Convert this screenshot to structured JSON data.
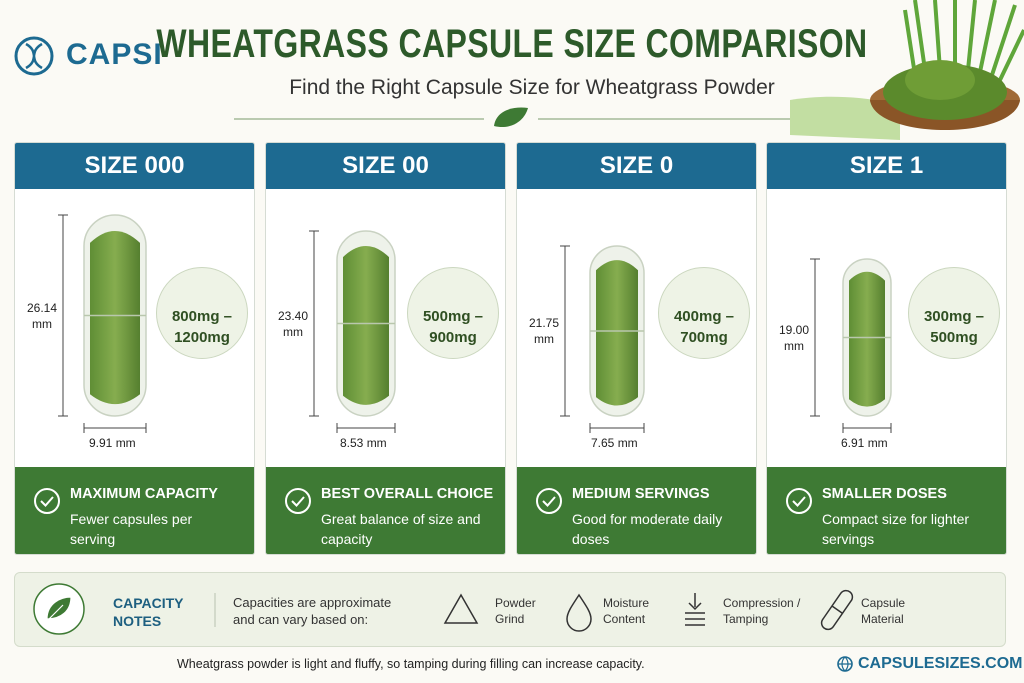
{
  "header": {
    "logo": "CAPSI",
    "title": "WHEATGRASS CAPSULE SIZE COMPARISON",
    "subtitle": "Find the Right Capsule Size for Wheatgrass Powder"
  },
  "cards": [
    {
      "size": "SIZE 000",
      "length": "26.14 mm",
      "width": "9.91 mm",
      "dose": "800mg – 1200mg",
      "heading": "MAXIMUM CAPACITY",
      "description": "Fewer capsules per serving"
    },
    {
      "size": "SIZE 00",
      "length": "23.40 mm",
      "width": "8.53 mm",
      "dose": "500mg – 900mg",
      "heading": "BEST OVERALL CHOICE",
      "description": "Great balance of size and capacity"
    },
    {
      "size": "SIZE 0",
      "length": "21.75 mm",
      "width": "7.65 mm",
      "dose": "400mg – 700mg",
      "heading": "MEDIUM SERVINGS",
      "description": "Good for moderate daily doses"
    },
    {
      "size": "SIZE 1",
      "length": "19.00 mm",
      "width": "6.91 mm",
      "dose": "300mg – 500mg",
      "heading": "SMALLER DOSES",
      "description": "Compact size for lighter servings"
    }
  ],
  "notes": {
    "heading": "CAPACITY NOTES",
    "intro": "Capacities are approximate and can vary based on:",
    "factors": [
      "Powder Grind",
      "Moisture Content",
      "Compression / Tamping",
      "Capsule Material"
    ]
  },
  "footer": {
    "note": "Wheatgrass powder is light and fluffy, so tamping during filling can increase capacity.",
    "website": "CAPSULESIZES.COM"
  }
}
